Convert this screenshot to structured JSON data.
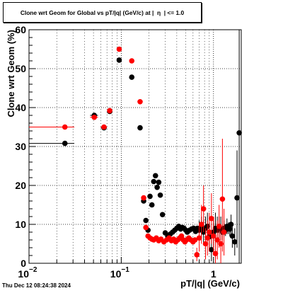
{
  "chart_data": {
    "type": "scatter",
    "title": "Clone wrt Geom for Global vs pT/|q| (GeV/c) at |  η  | <= 1.0",
    "xlabel": "pT/|q| (GeV/c)",
    "ylabel": "Clone wrt Geom (%)",
    "xscale": "log",
    "xlim": [
      0.01,
      2.0
    ],
    "ylim": [
      0,
      60
    ],
    "grid": true,
    "xtick_labels": [
      {
        "value": 0.01,
        "base": "10",
        "exp": "−2"
      },
      {
        "value": 0.1,
        "base": "10",
        "exp": "−1"
      },
      {
        "value": 1,
        "base": "1",
        "exp": ""
      }
    ],
    "ytick_labels": [
      "0",
      "10",
      "20",
      "30",
      "40",
      "50",
      "60"
    ],
    "footer": "Thu Dec 12 08:24:38 2024",
    "series": [
      {
        "color": "#000000",
        "points": [
          {
            "x": 0.0245,
            "y": 30.8,
            "xlo": 0.01,
            "xhi": 0.031
          },
          {
            "x": 0.051,
            "y": 38.0,
            "xlo": 0.046,
            "xhi": 0.056
          },
          {
            "x": 0.065,
            "y": 34.8,
            "xlo": 0.06,
            "xhi": 0.07
          },
          {
            "x": 0.075,
            "y": 39.0,
            "xlo": 0.071,
            "xhi": 0.079
          },
          {
            "x": 0.095,
            "y": 52.2,
            "xlo": 0.091,
            "xhi": 0.099
          },
          {
            "x": 0.13,
            "y": 47.8
          },
          {
            "x": 0.16,
            "y": 34.8
          },
          {
            "x": 0.175,
            "y": 16.0
          },
          {
            "x": 0.185,
            "y": 11.0
          },
          {
            "x": 0.195,
            "y": 8.5
          },
          {
            "x": 0.205,
            "y": 17.2
          },
          {
            "x": 0.215,
            "y": 15.0
          },
          {
            "x": 0.225,
            "y": 21.0
          },
          {
            "x": 0.235,
            "y": 22.5
          },
          {
            "x": 0.245,
            "y": 19.5
          },
          {
            "x": 0.255,
            "y": 20.8
          },
          {
            "x": 0.265,
            "y": 17.5
          },
          {
            "x": 0.28,
            "y": 12.5
          },
          {
            "x": 0.3,
            "y": 7.8
          },
          {
            "x": 0.32,
            "y": 7.0
          },
          {
            "x": 0.34,
            "y": 7.5
          },
          {
            "x": 0.36,
            "y": 8.0
          },
          {
            "x": 0.38,
            "y": 8.5
          },
          {
            "x": 0.4,
            "y": 9.0
          },
          {
            "x": 0.42,
            "y": 9.5
          },
          {
            "x": 0.44,
            "y": 8.8
          },
          {
            "x": 0.46,
            "y": 9.2
          },
          {
            "x": 0.48,
            "y": 9.0
          },
          {
            "x": 0.5,
            "y": 8.5
          },
          {
            "x": 0.52,
            "y": 8.0
          },
          {
            "x": 0.55,
            "y": 8.5
          },
          {
            "x": 0.58,
            "y": 8.8
          },
          {
            "x": 0.61,
            "y": 9.0
          },
          {
            "x": 0.64,
            "y": 8.2
          },
          {
            "x": 0.67,
            "y": 9.0
          },
          {
            "x": 0.7,
            "y": 8.5,
            "ylo": 6.0,
            "yhi": 11.0
          },
          {
            "x": 0.74,
            "y": 9.2,
            "ylo": 6.5,
            "yhi": 12.0
          },
          {
            "x": 0.78,
            "y": 8.0,
            "ylo": 5.0,
            "yhi": 11.0
          },
          {
            "x": 0.82,
            "y": 9.0,
            "ylo": 6.0,
            "yhi": 12.0
          },
          {
            "x": 0.86,
            "y": 9.5,
            "ylo": 6.0,
            "yhi": 13.0
          },
          {
            "x": 0.9,
            "y": 6.8,
            "ylo": 3.0,
            "yhi": 10.5
          },
          {
            "x": 0.95,
            "y": 3.5,
            "ylo": 0.5,
            "yhi": 7.0
          },
          {
            "x": 1.0,
            "y": 8.0,
            "ylo": 4.0,
            "yhi": 12.0
          },
          {
            "x": 1.05,
            "y": 9.0,
            "ylo": 5.0,
            "yhi": 13.0
          },
          {
            "x": 1.1,
            "y": 8.5,
            "ylo": 5.0,
            "yhi": 12.0
          },
          {
            "x": 1.15,
            "y": 9.2,
            "ylo": 6.0,
            "yhi": 12.0
          },
          {
            "x": 1.2,
            "y": 8.8,
            "ylo": 6.0,
            "yhi": 12.0
          },
          {
            "x": 1.25,
            "y": 8.0,
            "ylo": 6.0,
            "yhi": 10.0
          },
          {
            "x": 1.3,
            "y": 9.0,
            "ylo": 7.0,
            "yhi": 11.0
          },
          {
            "x": 1.35,
            "y": 8.5,
            "ylo": 7.0,
            "yhi": 10.0
          },
          {
            "x": 1.4,
            "y": 9.5,
            "ylo": 7.5,
            "yhi": 11.5
          },
          {
            "x": 1.45,
            "y": 9.0,
            "ylo": 7.5,
            "yhi": 10.5
          },
          {
            "x": 1.5,
            "y": 8.8,
            "ylo": 7.0,
            "yhi": 10.5
          },
          {
            "x": 1.55,
            "y": 10.0,
            "ylo": 7.5,
            "yhi": 12.5
          },
          {
            "x": 1.6,
            "y": 7.0,
            "ylo": 4.0,
            "yhi": 10.0
          },
          {
            "x": 1.7,
            "y": 5.5,
            "ylo": 2.0,
            "yhi": 9.0
          },
          {
            "x": 1.8,
            "y": 16.8,
            "ylo": 4.0,
            "yhi": 29.0
          },
          {
            "x": 1.9,
            "y": 33.5,
            "ylo": 0.0,
            "yhi": 60.0
          }
        ]
      },
      {
        "color": "#ff0000",
        "points": [
          {
            "x": 0.0245,
            "y": 35.0,
            "xlo": 0.01,
            "xhi": 0.031
          },
          {
            "x": 0.051,
            "y": 37.5,
            "xlo": 0.046,
            "xhi": 0.056
          },
          {
            "x": 0.065,
            "y": 35.0,
            "xlo": 0.06,
            "xhi": 0.07
          },
          {
            "x": 0.075,
            "y": 39.2,
            "xlo": 0.071,
            "xhi": 0.079
          },
          {
            "x": 0.095,
            "y": 55.0,
            "xlo": 0.091,
            "xhi": 0.099
          },
          {
            "x": 0.13,
            "y": 52.0
          },
          {
            "x": 0.16,
            "y": 41.5
          },
          {
            "x": 0.175,
            "y": 16.8
          },
          {
            "x": 0.185,
            "y": 9.2
          },
          {
            "x": 0.195,
            "y": 7.0
          },
          {
            "x": 0.205,
            "y": 6.5
          },
          {
            "x": 0.215,
            "y": 6.2
          },
          {
            "x": 0.225,
            "y": 6.0
          },
          {
            "x": 0.24,
            "y": 6.5
          },
          {
            "x": 0.255,
            "y": 5.8
          },
          {
            "x": 0.27,
            "y": 6.2
          },
          {
            "x": 0.29,
            "y": 5.5
          },
          {
            "x": 0.31,
            "y": 6.0
          },
          {
            "x": 0.33,
            "y": 6.5
          },
          {
            "x": 0.35,
            "y": 5.8
          },
          {
            "x": 0.37,
            "y": 6.2
          },
          {
            "x": 0.39,
            "y": 5.5
          },
          {
            "x": 0.41,
            "y": 6.0
          },
          {
            "x": 0.43,
            "y": 6.5
          },
          {
            "x": 0.45,
            "y": 7.0
          },
          {
            "x": 0.47,
            "y": 6.0
          },
          {
            "x": 0.49,
            "y": 5.5
          },
          {
            "x": 0.51,
            "y": 6.0
          },
          {
            "x": 0.54,
            "y": 6.5
          },
          {
            "x": 0.57,
            "y": 6.0
          },
          {
            "x": 0.6,
            "y": 5.5
          },
          {
            "x": 0.63,
            "y": 6.0
          },
          {
            "x": 0.66,
            "y": 2.2,
            "ylo": 0.5,
            "yhi": 4.0
          },
          {
            "x": 0.7,
            "y": 6.5,
            "ylo": 3.0,
            "yhi": 10.0
          },
          {
            "x": 0.74,
            "y": 10.0,
            "ylo": 5.0,
            "yhi": 15.0
          },
          {
            "x": 0.78,
            "y": 14.0,
            "ylo": 8.0,
            "yhi": 20.0
          },
          {
            "x": 0.82,
            "y": 5.0,
            "ylo": 1.0,
            "yhi": 9.0
          },
          {
            "x": 0.86,
            "y": 6.5,
            "ylo": 2.0,
            "yhi": 11.0
          },
          {
            "x": 0.9,
            "y": 8.0,
            "ylo": 3.0,
            "yhi": 13.0
          },
          {
            "x": 0.95,
            "y": 11.5,
            "ylo": 5.0,
            "yhi": 18.0
          },
          {
            "x": 1.0,
            "y": 7.0,
            "ylo": 2.0,
            "yhi": 12.0
          },
          {
            "x": 1.05,
            "y": 2.5,
            "ylo": 0.0,
            "yhi": 6.0
          },
          {
            "x": 1.1,
            "y": 6.0,
            "ylo": 1.0,
            "yhi": 11.0
          },
          {
            "x": 1.15,
            "y": 9.5,
            "ylo": 4.0,
            "yhi": 15.0
          },
          {
            "x": 1.2,
            "y": 5.0,
            "ylo": 0.0,
            "yhi": 10.0
          },
          {
            "x": 1.25,
            "y": 16.5,
            "ylo": 3.0,
            "yhi": 32.0
          },
          {
            "x": 1.3,
            "y": 8.0,
            "ylo": 2.0,
            "yhi": 14.0
          }
        ]
      }
    ]
  }
}
